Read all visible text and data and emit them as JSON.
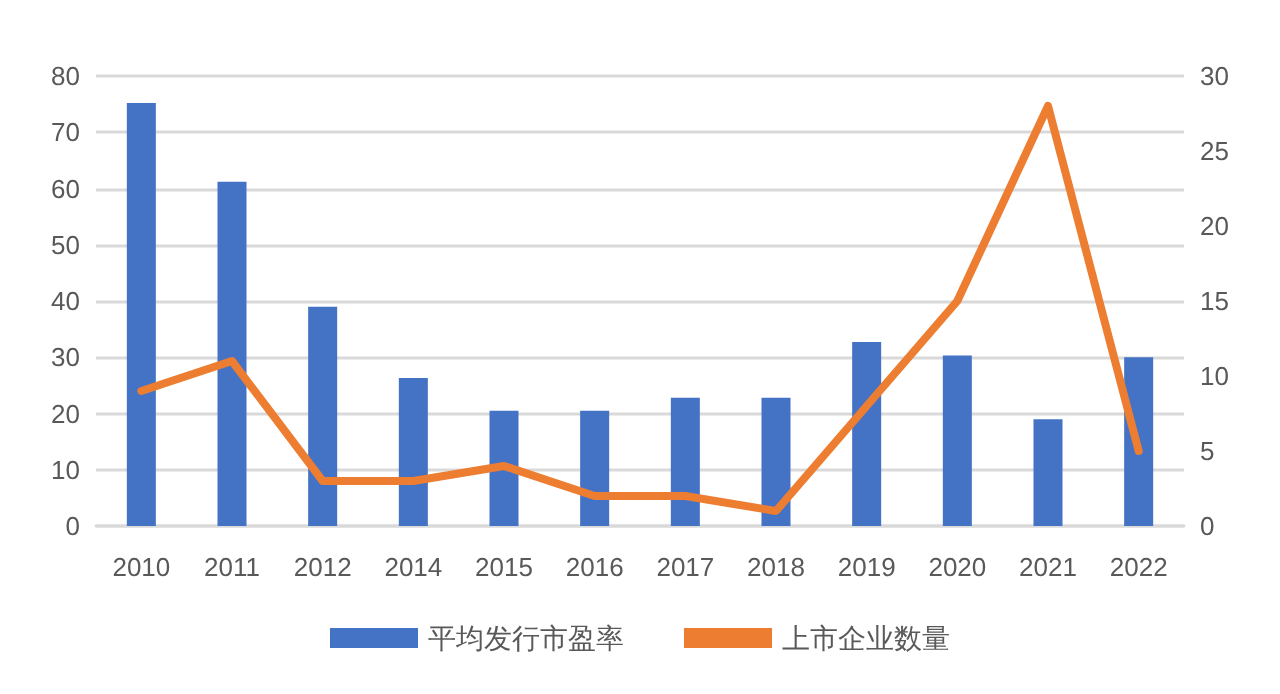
{
  "chart_data": {
    "type": "bar",
    "categories": [
      "2010",
      "2011",
      "2012",
      "2014",
      "2015",
      "2016",
      "2017",
      "2018",
      "2019",
      "2020",
      "2021",
      "2022"
    ],
    "series": [
      {
        "name": "平均发行市盈率",
        "color": "#4472c4",
        "values": [
          75.2,
          61.2,
          39,
          26.3,
          20.5,
          20.5,
          22.8,
          22.8,
          32.7,
          30.3,
          19,
          30
        ]
      },
      {
        "name": "上市企业数量",
        "type": "line",
        "axis": "y2",
        "color": "#ed7d31",
        "values": [
          9,
          11,
          3,
          3,
          4,
          2,
          2,
          1,
          8,
          15,
          28,
          5
        ]
      }
    ],
    "ylim": [
      0,
      80
    ],
    "yticks": [
      0,
      10,
      20,
      30,
      40,
      50,
      60,
      70,
      80
    ],
    "y2lim": [
      0,
      30
    ],
    "y2ticks": [
      0,
      5,
      10,
      15,
      20,
      25,
      30
    ],
    "grid": "y",
    "legend": "bottom",
    "marker": "none"
  }
}
